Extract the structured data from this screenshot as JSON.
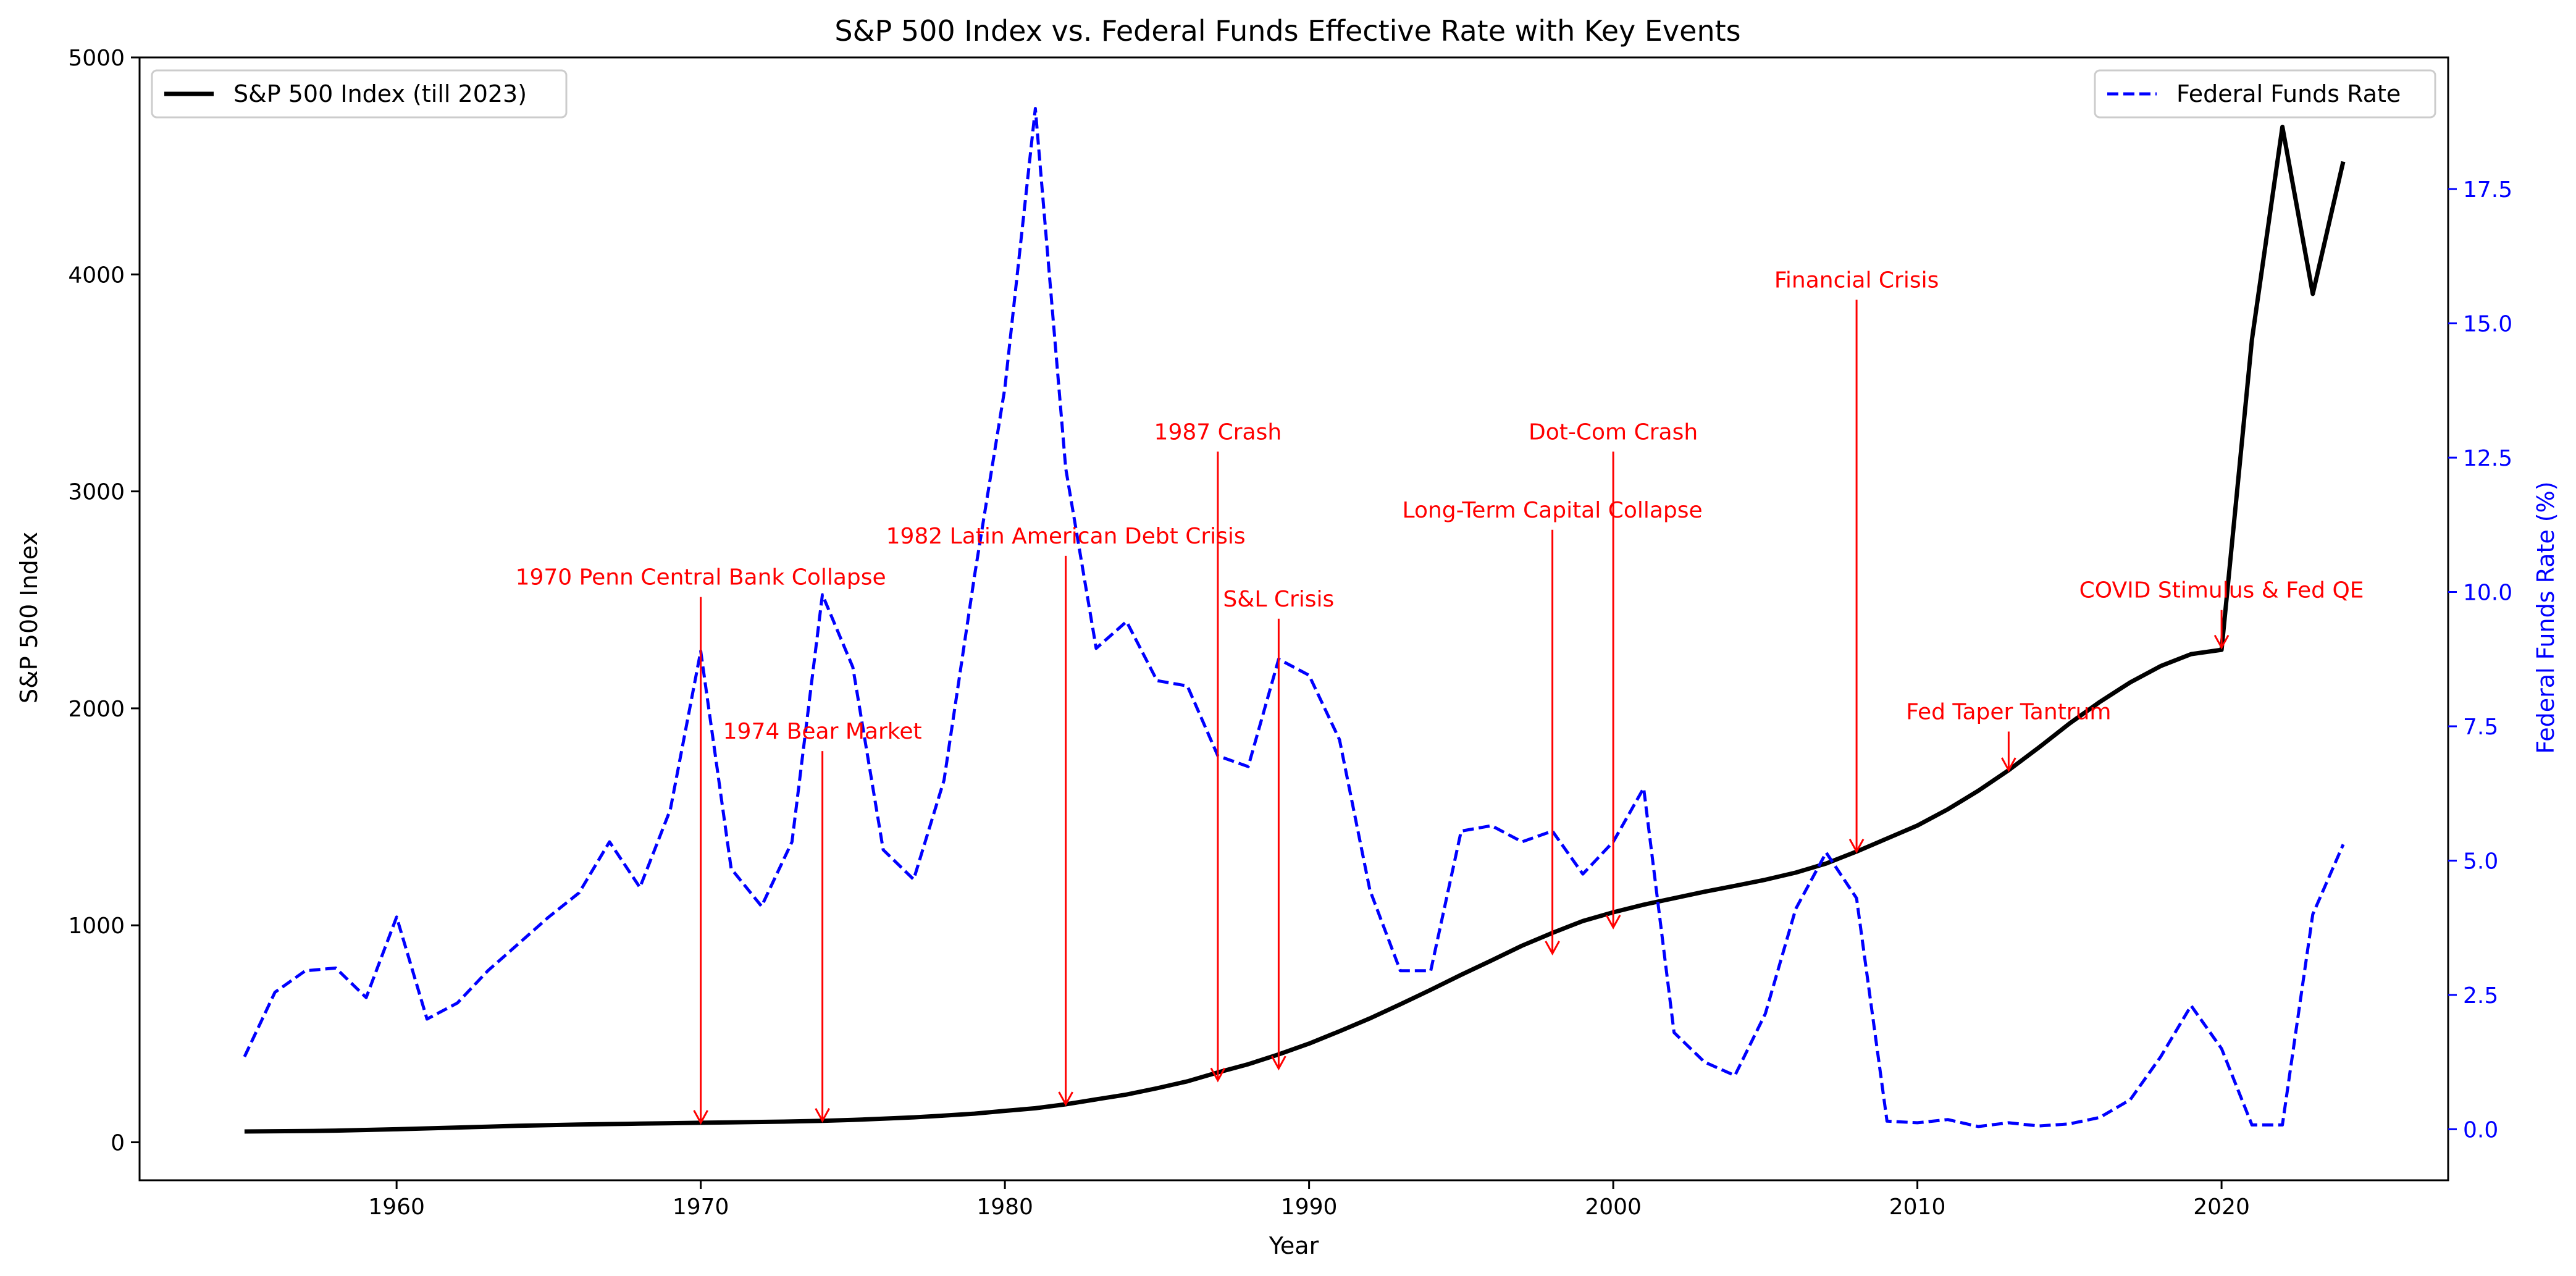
{
  "chart_data": {
    "type": "line",
    "title": "S&P 500 Index vs. Federal Funds Effective Rate with Key Events",
    "xlabel": "Year",
    "ylabel_left": "S&P 500 Index",
    "ylabel_right": "Federal Funds Rate (%)",
    "xlim": [
      1951.55,
      2027.45
    ],
    "ylim_left": [
      -175,
      5000
    ],
    "ylim_right": [
      -0.95,
      19.95
    ],
    "xticks": [
      1960,
      1970,
      1980,
      1990,
      2000,
      2010,
      2020
    ],
    "yticks_left": [
      0,
      1000,
      2000,
      3000,
      4000,
      5000
    ],
    "yticks_right": [
      0.0,
      2.5,
      5.0,
      7.5,
      10.0,
      12.5,
      15.0,
      17.5
    ],
    "grid": false,
    "legend_left": {
      "label": "S&P 500 Index (till 2023)",
      "placement": "upper-left",
      "color": "#000000",
      "style": "solid"
    },
    "legend_right": {
      "label": "Federal Funds Rate",
      "placement": "upper-right",
      "color": "#0000ff",
      "style": "dashed"
    },
    "colors": {
      "sp500": "#000000",
      "fed": "#0000ff",
      "annotation": "#ff0000"
    },
    "series": [
      {
        "name": "S&P 500 Index (till 2023)",
        "axis": "left",
        "x": [
          1955,
          1956,
          1957,
          1958,
          1959,
          1960,
          1961,
          1962,
          1963,
          1964,
          1965,
          1966,
          1967,
          1968,
          1969,
          1970,
          1971,
          1972,
          1973,
          1974,
          1975,
          1976,
          1977,
          1978,
          1979,
          1980,
          1981,
          1982,
          1983,
          1984,
          1985,
          1986,
          1987,
          1988,
          1989,
          1990,
          1991,
          1992,
          1993,
          1994,
          1995,
          1996,
          1997,
          1998,
          1999,
          2000,
          2001,
          2002,
          2003,
          2004,
          2005,
          2006,
          2007,
          2008,
          2009,
          2010,
          2011,
          2012,
          2013,
          2014,
          2015,
          2016,
          2017,
          2018,
          2019,
          2020,
          2021,
          2022,
          2023,
          2024
        ],
        "y": [
          50,
          51,
          52,
          54,
          57,
          60,
          64,
          68,
          72,
          76,
          79,
          82,
          84,
          86,
          88,
          90,
          92,
          94,
          96,
          99,
          103,
          109,
          115,
          123,
          132,
          145,
          157,
          175,
          198,
          220,
          249,
          281,
          322,
          360,
          405,
          455,
          512,
          571,
          636,
          703,
          772,
          838,
          906,
          965,
          1020,
          1060,
          1095,
          1125,
          1155,
          1182,
          1210,
          1243,
          1285,
          1340,
          1400,
          1460,
          1535,
          1620,
          1715,
          1820,
          1930,
          2030,
          2120,
          2195,
          2250,
          2270,
          3700,
          4680,
          3910,
          4520
        ]
      },
      {
        "name": "Federal Funds Rate",
        "axis": "right",
        "x": [
          1955,
          1956,
          1957,
          1958,
          1959,
          1960,
          1961,
          1962,
          1963,
          1964,
          1965,
          1966,
          1967,
          1968,
          1969,
          1970,
          1971,
          1972,
          1973,
          1974,
          1975,
          1976,
          1977,
          1978,
          1979,
          1980,
          1981,
          1982,
          1983,
          1984,
          1985,
          1986,
          1987,
          1988,
          1989,
          1990,
          1991,
          1992,
          1993,
          1994,
          1995,
          1996,
          1997,
          1998,
          1999,
          2000,
          2001,
          2002,
          2003,
          2004,
          2005,
          2006,
          2007,
          2008,
          2009,
          2010,
          2011,
          2012,
          2013,
          2014,
          2015,
          2016,
          2017,
          2018,
          2019,
          2020,
          2021,
          2022,
          2023,
          2024
        ],
        "y": [
          1.35,
          2.55,
          2.95,
          3.0,
          2.45,
          3.95,
          2.05,
          2.35,
          2.95,
          3.45,
          3.95,
          4.4,
          5.35,
          4.5,
          5.95,
          8.9,
          4.85,
          4.15,
          5.35,
          9.95,
          8.6,
          5.2,
          4.65,
          6.5,
          10.3,
          13.8,
          19.0,
          12.3,
          8.95,
          9.45,
          8.35,
          8.25,
          6.95,
          6.75,
          8.75,
          8.45,
          7.25,
          4.45,
          2.95,
          2.95,
          5.55,
          5.65,
          5.35,
          5.55,
          4.75,
          5.35,
          6.35,
          1.8,
          1.25,
          1.0,
          2.15,
          4.1,
          5.15,
          4.3,
          0.15,
          0.12,
          0.18,
          0.05,
          0.12,
          0.06,
          0.1,
          0.22,
          0.55,
          1.35,
          2.3,
          1.5,
          0.08,
          0.08,
          4.0,
          5.3
        ]
      }
    ],
    "annotations": [
      {
        "text": "1970 Penn Central Bank Collapse",
        "x": 1970,
        "y_text": 2570,
        "y_arrow": 90
      },
      {
        "text": "1974 Bear Market",
        "x": 1974,
        "y_text": 1860,
        "y_arrow": 99
      },
      {
        "text": "1982 Latin American Debt Crisis",
        "x": 1982,
        "y_text": 2760,
        "y_arrow": 175
      },
      {
        "text": "1987 Crash",
        "x": 1987,
        "y_text": 3240,
        "y_arrow": 285
      },
      {
        "text": "S&L Crisis",
        "x": 1989,
        "y_text": 2470,
        "y_arrow": 340
      },
      {
        "text": "Long-Term Capital Collapse",
        "x": 1998,
        "y_text": 2880,
        "y_arrow": 870
      },
      {
        "text": "Dot-Com Crash",
        "x": 2000,
        "y_text": 3240,
        "y_arrow": 990
      },
      {
        "text": "Financial Crisis",
        "x": 2008,
        "y_text": 3940,
        "y_arrow": 1340
      },
      {
        "text": "Fed Taper Tantrum",
        "x": 2013,
        "y_text": 1950,
        "y_arrow": 1715
      },
      {
        "text": "COVID Stimulus & Fed QE",
        "x": 2020,
        "y_text": 2510,
        "y_arrow": 2280
      }
    ]
  }
}
